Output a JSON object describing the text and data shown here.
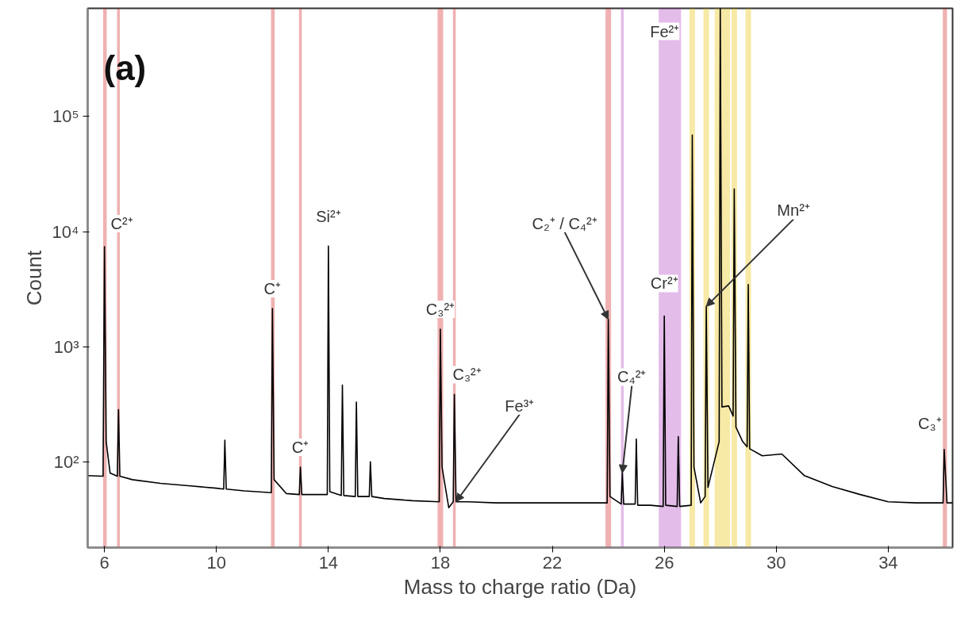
{
  "chart_data": {
    "type": "line",
    "xlabel": "Mass to charge ratio (Da)",
    "ylabel": "Count",
    "log": "y",
    "grid": false,
    "marker": "none",
    "line_style": "solid",
    "xlim": [
      5.4,
      36.3
    ],
    "xticks": [
      6,
      10,
      14,
      18,
      22,
      26,
      30,
      34
    ],
    "ylim": [
      18,
      870000
    ],
    "yticks": [
      {
        "value": 100,
        "label": "10²"
      },
      {
        "value": 1000,
        "label": "10³"
      },
      {
        "value": 10000,
        "label": "10⁴"
      },
      {
        "value": 100000,
        "label": "10⁵"
      }
    ],
    "series": [
      {
        "color": "#000000",
        "x": [
          5.4,
          5.95,
          6.0,
          6.06,
          6.2,
          6.46,
          6.5,
          6.55,
          7,
          8,
          9,
          10,
          10.26,
          10.3,
          10.35,
          11,
          11.96,
          12.0,
          12.06,
          12.5,
          12.96,
          13.0,
          13.05,
          13.5,
          13.96,
          14.0,
          14.05,
          14.46,
          14.5,
          14.55,
          14.96,
          15.0,
          15.05,
          15.46,
          15.5,
          15.55,
          16,
          17,
          17.96,
          18.0,
          18.06,
          18.3,
          18.46,
          18.5,
          18.56,
          19,
          20,
          21,
          22,
          23,
          23.96,
          24.0,
          24.06,
          24.46,
          24.5,
          24.55,
          24.96,
          25.0,
          25.05,
          25.5,
          25.96,
          26.0,
          26.05,
          26.46,
          26.5,
          26.55,
          26.96,
          27.0,
          27.06,
          27.3,
          27.46,
          27.5,
          27.56,
          27.96,
          28.0,
          28.06,
          28.3,
          28.46,
          28.5,
          28.56,
          28.8,
          28.96,
          29.0,
          29.05,
          29.5,
          30.2,
          31,
          32,
          33,
          34,
          35,
          35.96,
          36.0,
          36.1,
          36.3
        ],
        "values": [
          76,
          75,
          7400,
          150,
          80,
          75,
          284,
          75,
          70,
          65,
          62,
          59,
          58,
          154,
          58,
          56,
          54,
          2150,
          70,
          53,
          52,
          90,
          52,
          52,
          52,
          7500,
          55,
          51,
          464,
          51,
          50,
          330,
          50,
          50,
          100,
          50,
          48,
          46,
          45,
          1420,
          90,
          40,
          45,
          385,
          45,
          45,
          44,
          44,
          44,
          44,
          44,
          1730,
          50,
          43,
          80,
          43,
          43,
          158,
          42,
          42,
          41,
          1850,
          42,
          41,
          166,
          41,
          42,
          69000,
          90,
          44,
          50,
          2240,
          60,
          150,
          870000,
          300,
          306,
          250,
          23500,
          200,
          150,
          135,
          3470,
          130,
          113,
          117,
          76,
          61,
          52,
          45,
          44,
          44,
          128,
          44,
          44
        ]
      }
    ],
    "bands": [
      {
        "axis": "x",
        "from": 5.95,
        "to": 6.08,
        "color": "#d02020"
      },
      {
        "axis": "x",
        "from": 6.45,
        "to": 6.55,
        "color": "#d02020"
      },
      {
        "axis": "x",
        "from": 11.95,
        "to": 12.08,
        "color": "#d02020"
      },
      {
        "axis": "x",
        "from": 12.95,
        "to": 13.05,
        "color": "#d02020"
      },
      {
        "axis": "x",
        "from": 17.9,
        "to": 18.1,
        "color": "#d02020"
      },
      {
        "axis": "x",
        "from": 18.45,
        "to": 18.55,
        "color": "#d02020"
      },
      {
        "axis": "x",
        "from": 23.9,
        "to": 24.1,
        "color": "#d02020"
      },
      {
        "axis": "x",
        "from": 24.45,
        "to": 24.55,
        "color": "#b040c0"
      },
      {
        "axis": "x",
        "from": 25.8,
        "to": 26.6,
        "color": "#b040c0"
      },
      {
        "axis": "x",
        "from": 26.9,
        "to": 27.1,
        "color": "#e8c000"
      },
      {
        "axis": "x",
        "from": 27.4,
        "to": 27.6,
        "color": "#e8c000"
      },
      {
        "axis": "x",
        "from": 27.8,
        "to": 28.35,
        "color": "#e8c000"
      },
      {
        "axis": "x",
        "from": 28.4,
        "to": 28.6,
        "color": "#e8c000"
      },
      {
        "axis": "x",
        "from": 28.9,
        "to": 29.1,
        "color": "#e8c000"
      },
      {
        "axis": "x",
        "from": 35.95,
        "to": 36.1,
        "color": "#d02020"
      }
    ],
    "annotations": [
      "(a)",
      {
        "text": "C²⁺",
        "x": 6.0,
        "y": 7400
      },
      {
        "text": "C⁺",
        "x": 12.0,
        "y": 2150
      },
      {
        "text": "C⁺",
        "x": 13.0,
        "y": 90
      },
      {
        "text": "Si²⁺",
        "x": 14.0,
        "y": 7500
      },
      {
        "text": "C₃²⁺",
        "x": 18.0,
        "y": 1420
      },
      {
        "text": "C₃²⁺",
        "x": 18.5,
        "y": 385
      },
      {
        "text": "Fe³⁺",
        "x": 18.56,
        "y": 45
      },
      {
        "text": "C₂⁺ / C₄²⁺",
        "x": 24.0,
        "y": 1730
      },
      {
        "text": "C₄²⁺",
        "x": 24.5,
        "y": 80
      },
      {
        "text": "Cr²⁺",
        "x": 26.0,
        "y": 1850
      },
      {
        "text": "Mn²⁺",
        "x": 27.5,
        "y": 2240
      },
      {
        "text": "Fe²⁺",
        "x": 28.0,
        "y": 870000
      },
      {
        "text": "C₃⁺",
        "x": 36.0,
        "y": 128
      }
    ]
  }
}
